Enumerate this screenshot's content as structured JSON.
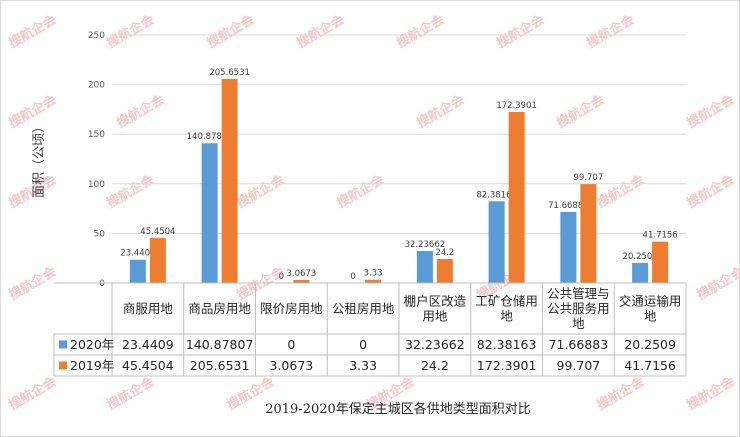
{
  "chart_data": {
    "type": "bar",
    "title": "2019-2020年保定主城区各供地类型面积对比",
    "ylabel": "面积（公顷）",
    "ylim": [
      0,
      250
    ],
    "yticks": [
      0,
      50,
      100,
      150,
      200,
      250
    ],
    "grid": true,
    "legend": "data-table",
    "categories": [
      [
        "商服用地"
      ],
      [
        "商品房用地"
      ],
      [
        "限价房用地"
      ],
      [
        "公租房用地"
      ],
      [
        "棚户区改造",
        "用地"
      ],
      [
        "工矿仓储用",
        "地"
      ],
      [
        "公共管理与",
        "公共服务用",
        "地"
      ],
      [
        "交通运输用",
        "地"
      ]
    ],
    "series": [
      {
        "name": "2020年",
        "color": "#5b9bd5",
        "values": [
          23.4409,
          140.87807,
          0,
          0,
          32.23662,
          82.38163,
          71.66883,
          20.2509
        ],
        "labels": [
          "23.4409",
          "140.87807",
          "0",
          "0",
          "32.23662",
          "82.38163",
          "71.66883",
          "20.2509"
        ]
      },
      {
        "name": "2019年",
        "color": "#ed7d31",
        "values": [
          45.4504,
          205.6531,
          3.0673,
          3.33,
          24.2,
          172.3901,
          99.707,
          41.7156
        ],
        "labels": [
          "45.4504",
          "205.6531",
          "3.0673",
          "3.33",
          "24.2",
          "172.3901",
          "99.707",
          "41.7156"
        ]
      }
    ]
  },
  "watermark": "搜航企会"
}
